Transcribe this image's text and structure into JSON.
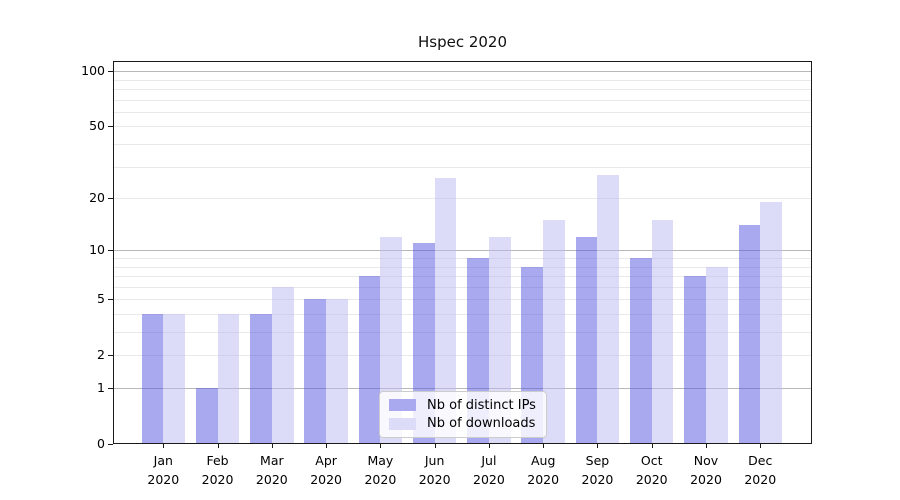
{
  "chart_data": {
    "type": "bar",
    "title": "Hspec 2020",
    "categories": [
      "Jan",
      "Feb",
      "Mar",
      "Apr",
      "May",
      "Jun",
      "Jul",
      "Aug",
      "Sep",
      "Oct",
      "Nov",
      "Dec"
    ],
    "x_tick_second_line": "2020",
    "series": [
      {
        "name": "Nb of distinct IPs",
        "fill": "rgba(83,83,225,0.5)",
        "swatch": "#a9a9f0",
        "values": [
          4,
          1,
          4,
          5,
          7,
          11,
          9,
          8,
          12,
          9,
          7,
          14
        ]
      },
      {
        "name": "Nb of downloads",
        "fill": "rgba(185,185,241,0.5)",
        "swatch": "#dcdcf8",
        "values": [
          4,
          4,
          6,
          5,
          12,
          26,
          12,
          15,
          27,
          15,
          8,
          19
        ]
      }
    ],
    "y_scale": "log10(1+v)",
    "y_tick_values": [
      0,
      1,
      2,
      5,
      10,
      20,
      50,
      100
    ],
    "y_tick_labels": [
      "0",
      "1",
      "2",
      "5",
      "10",
      "20",
      "50",
      "100"
    ],
    "y_major_gridlines": [
      1,
      10,
      100
    ],
    "y_minor_gridlines": [
      2,
      3,
      4,
      5,
      6,
      7,
      8,
      9,
      20,
      30,
      40,
      50,
      60,
      70,
      80,
      90
    ],
    "ylim": [
      0,
      113
    ],
    "grid": true,
    "legend_position": "lower-center"
  },
  "colors": {
    "background": "#ffffff",
    "axis": "#1a1a1a",
    "major_grid": "#b8b8b8",
    "minor_grid": "#e9e9e9",
    "legend_border": "#cccccc",
    "legend_bg": "rgba(255,255,255,0.8)",
    "text": "#000000"
  }
}
